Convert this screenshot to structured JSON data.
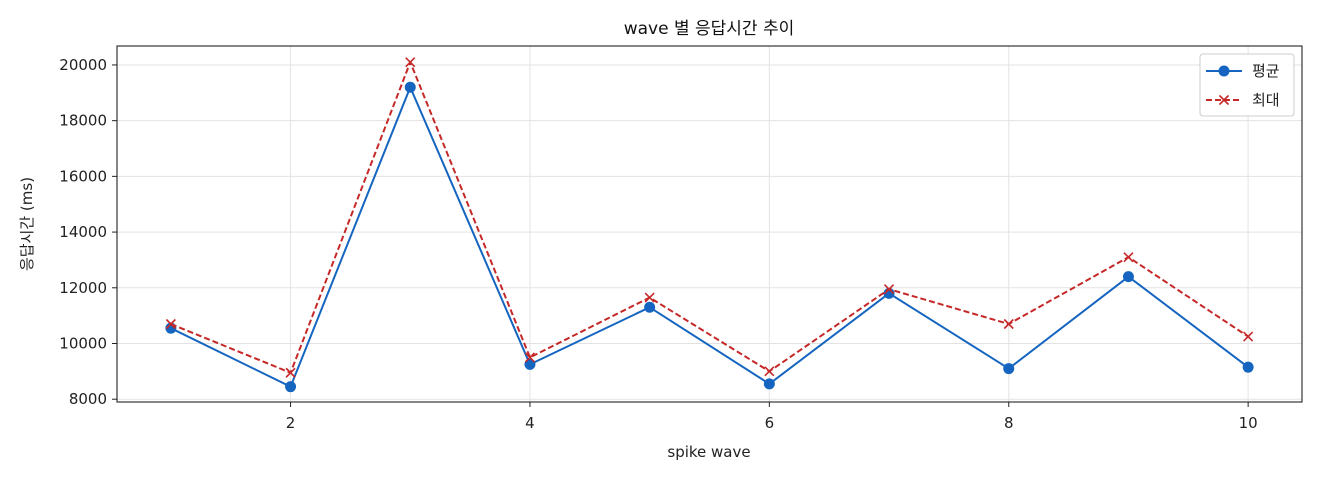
{
  "chart_data": {
    "type": "line",
    "title": "wave 별 응답시간 추이",
    "xlabel": "spike wave",
    "ylabel": "응답시간 (ms)",
    "x": [
      1,
      2,
      3,
      4,
      5,
      6,
      7,
      8,
      9,
      10
    ],
    "xlim": [
      0.55,
      10.45
    ],
    "ylim": [
      7900,
      20680
    ],
    "xticks": [
      2,
      4,
      6,
      8,
      10
    ],
    "xtick_labels": [
      "2",
      "4",
      "6",
      "8",
      "10"
    ],
    "yticks": [
      8000,
      10000,
      12000,
      14000,
      16000,
      18000,
      20000
    ],
    "ytick_labels": [
      "8000",
      "10000",
      "12000",
      "14000",
      "16000",
      "18000",
      "20000"
    ],
    "grid": true,
    "legend_position": "top-right",
    "series": [
      {
        "name": "평균",
        "color": "#1565c0",
        "line_style": "solid",
        "marker": "circle",
        "values": [
          10550,
          8450,
          19200,
          9250,
          11300,
          8550,
          11800,
          9100,
          12400,
          9150
        ]
      },
      {
        "name": "최대",
        "color": "#c62828",
        "line_style": "dashed",
        "marker": "x",
        "values": [
          10700,
          8950,
          20100,
          9500,
          11650,
          9000,
          11950,
          10700,
          13100,
          10250
        ]
      }
    ]
  }
}
